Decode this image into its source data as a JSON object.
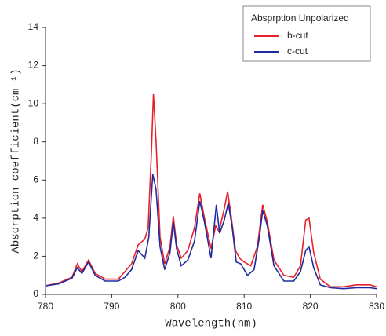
{
  "chart_data": {
    "type": "line",
    "x_label": "Wavelength(nm)",
    "y_label": "Absorption coefficient(cm⁻¹)",
    "legend_title": "Absprption Unpolarized",
    "legend_position": "upper right",
    "xlim": [
      780,
      830
    ],
    "xticks": [
      780,
      790,
      800,
      810,
      820,
      830
    ],
    "ylim": [
      0,
      14
    ],
    "yticks": [
      0,
      2,
      4,
      6,
      8,
      10,
      12,
      14
    ],
    "series": [
      {
        "name": "b-cut",
        "color": "#e8202a",
        "x": [
          780,
          782,
          784,
          784.8,
          785.5,
          786.5,
          787.5,
          789,
          791,
          792,
          793,
          794,
          795,
          795.5,
          796,
          796.3,
          796.7,
          797.3,
          798,
          798.8,
          799.3,
          799.8,
          800.5,
          801.5,
          802.5,
          803.3,
          804,
          805,
          805.7,
          806.2,
          807,
          807.5,
          808,
          808.7,
          809.3,
          810,
          811,
          812,
          812.8,
          813.5,
          814.5,
          816,
          817.5,
          818.5,
          819.3,
          819.8,
          820.5,
          821.5,
          823,
          825,
          827,
          829,
          830
        ],
        "values": [
          0.45,
          0.6,
          0.9,
          1.6,
          1.2,
          1.8,
          1.1,
          0.8,
          0.8,
          1.2,
          1.6,
          2.6,
          2.9,
          3.5,
          7.5,
          10.5,
          8,
          3,
          1.6,
          2.5,
          4.1,
          2.6,
          1.9,
          2.3,
          3.5,
          5.3,
          4,
          2.4,
          3.6,
          3.3,
          4.5,
          5.4,
          4.2,
          2.3,
          1.9,
          1.7,
          1.5,
          2.5,
          4.7,
          3.8,
          1.8,
          1,
          0.9,
          1.5,
          3.9,
          4,
          2.2,
          0.8,
          0.4,
          0.4,
          0.5,
          0.5,
          0.4
        ]
      },
      {
        "name": "c-cut",
        "color": "#1f2a9c",
        "x": [
          780,
          782,
          784,
          784.8,
          785.5,
          786.5,
          787.5,
          789,
          791,
          792,
          793,
          794,
          795,
          795.6,
          796.2,
          796.7,
          797.3,
          798,
          798.8,
          799.3,
          799.8,
          800.5,
          801.5,
          802.5,
          803.3,
          804,
          805,
          805.8,
          806.3,
          807,
          807.6,
          808.2,
          808.8,
          809.5,
          810.5,
          811.5,
          812.3,
          812.8,
          813.5,
          814.5,
          816,
          817.5,
          818.5,
          819.3,
          819.8,
          820.5,
          821.5,
          823,
          825,
          827,
          829,
          830
        ],
        "values": [
          0.45,
          0.55,
          0.85,
          1.4,
          1.1,
          1.7,
          1,
          0.7,
          0.7,
          0.9,
          1.3,
          2.3,
          1.9,
          3,
          6.3,
          5.5,
          2.5,
          1.3,
          2.2,
          3.8,
          2.4,
          1.5,
          1.8,
          2.8,
          4.9,
          3.8,
          1.9,
          4.7,
          3.2,
          3.9,
          4.8,
          3.5,
          1.7,
          1.6,
          1,
          1.3,
          3,
          4.4,
          3.6,
          1.5,
          0.7,
          0.7,
          1.2,
          2.3,
          2.5,
          1.4,
          0.5,
          0.35,
          0.3,
          0.35,
          0.35,
          0.3
        ]
      }
    ]
  }
}
